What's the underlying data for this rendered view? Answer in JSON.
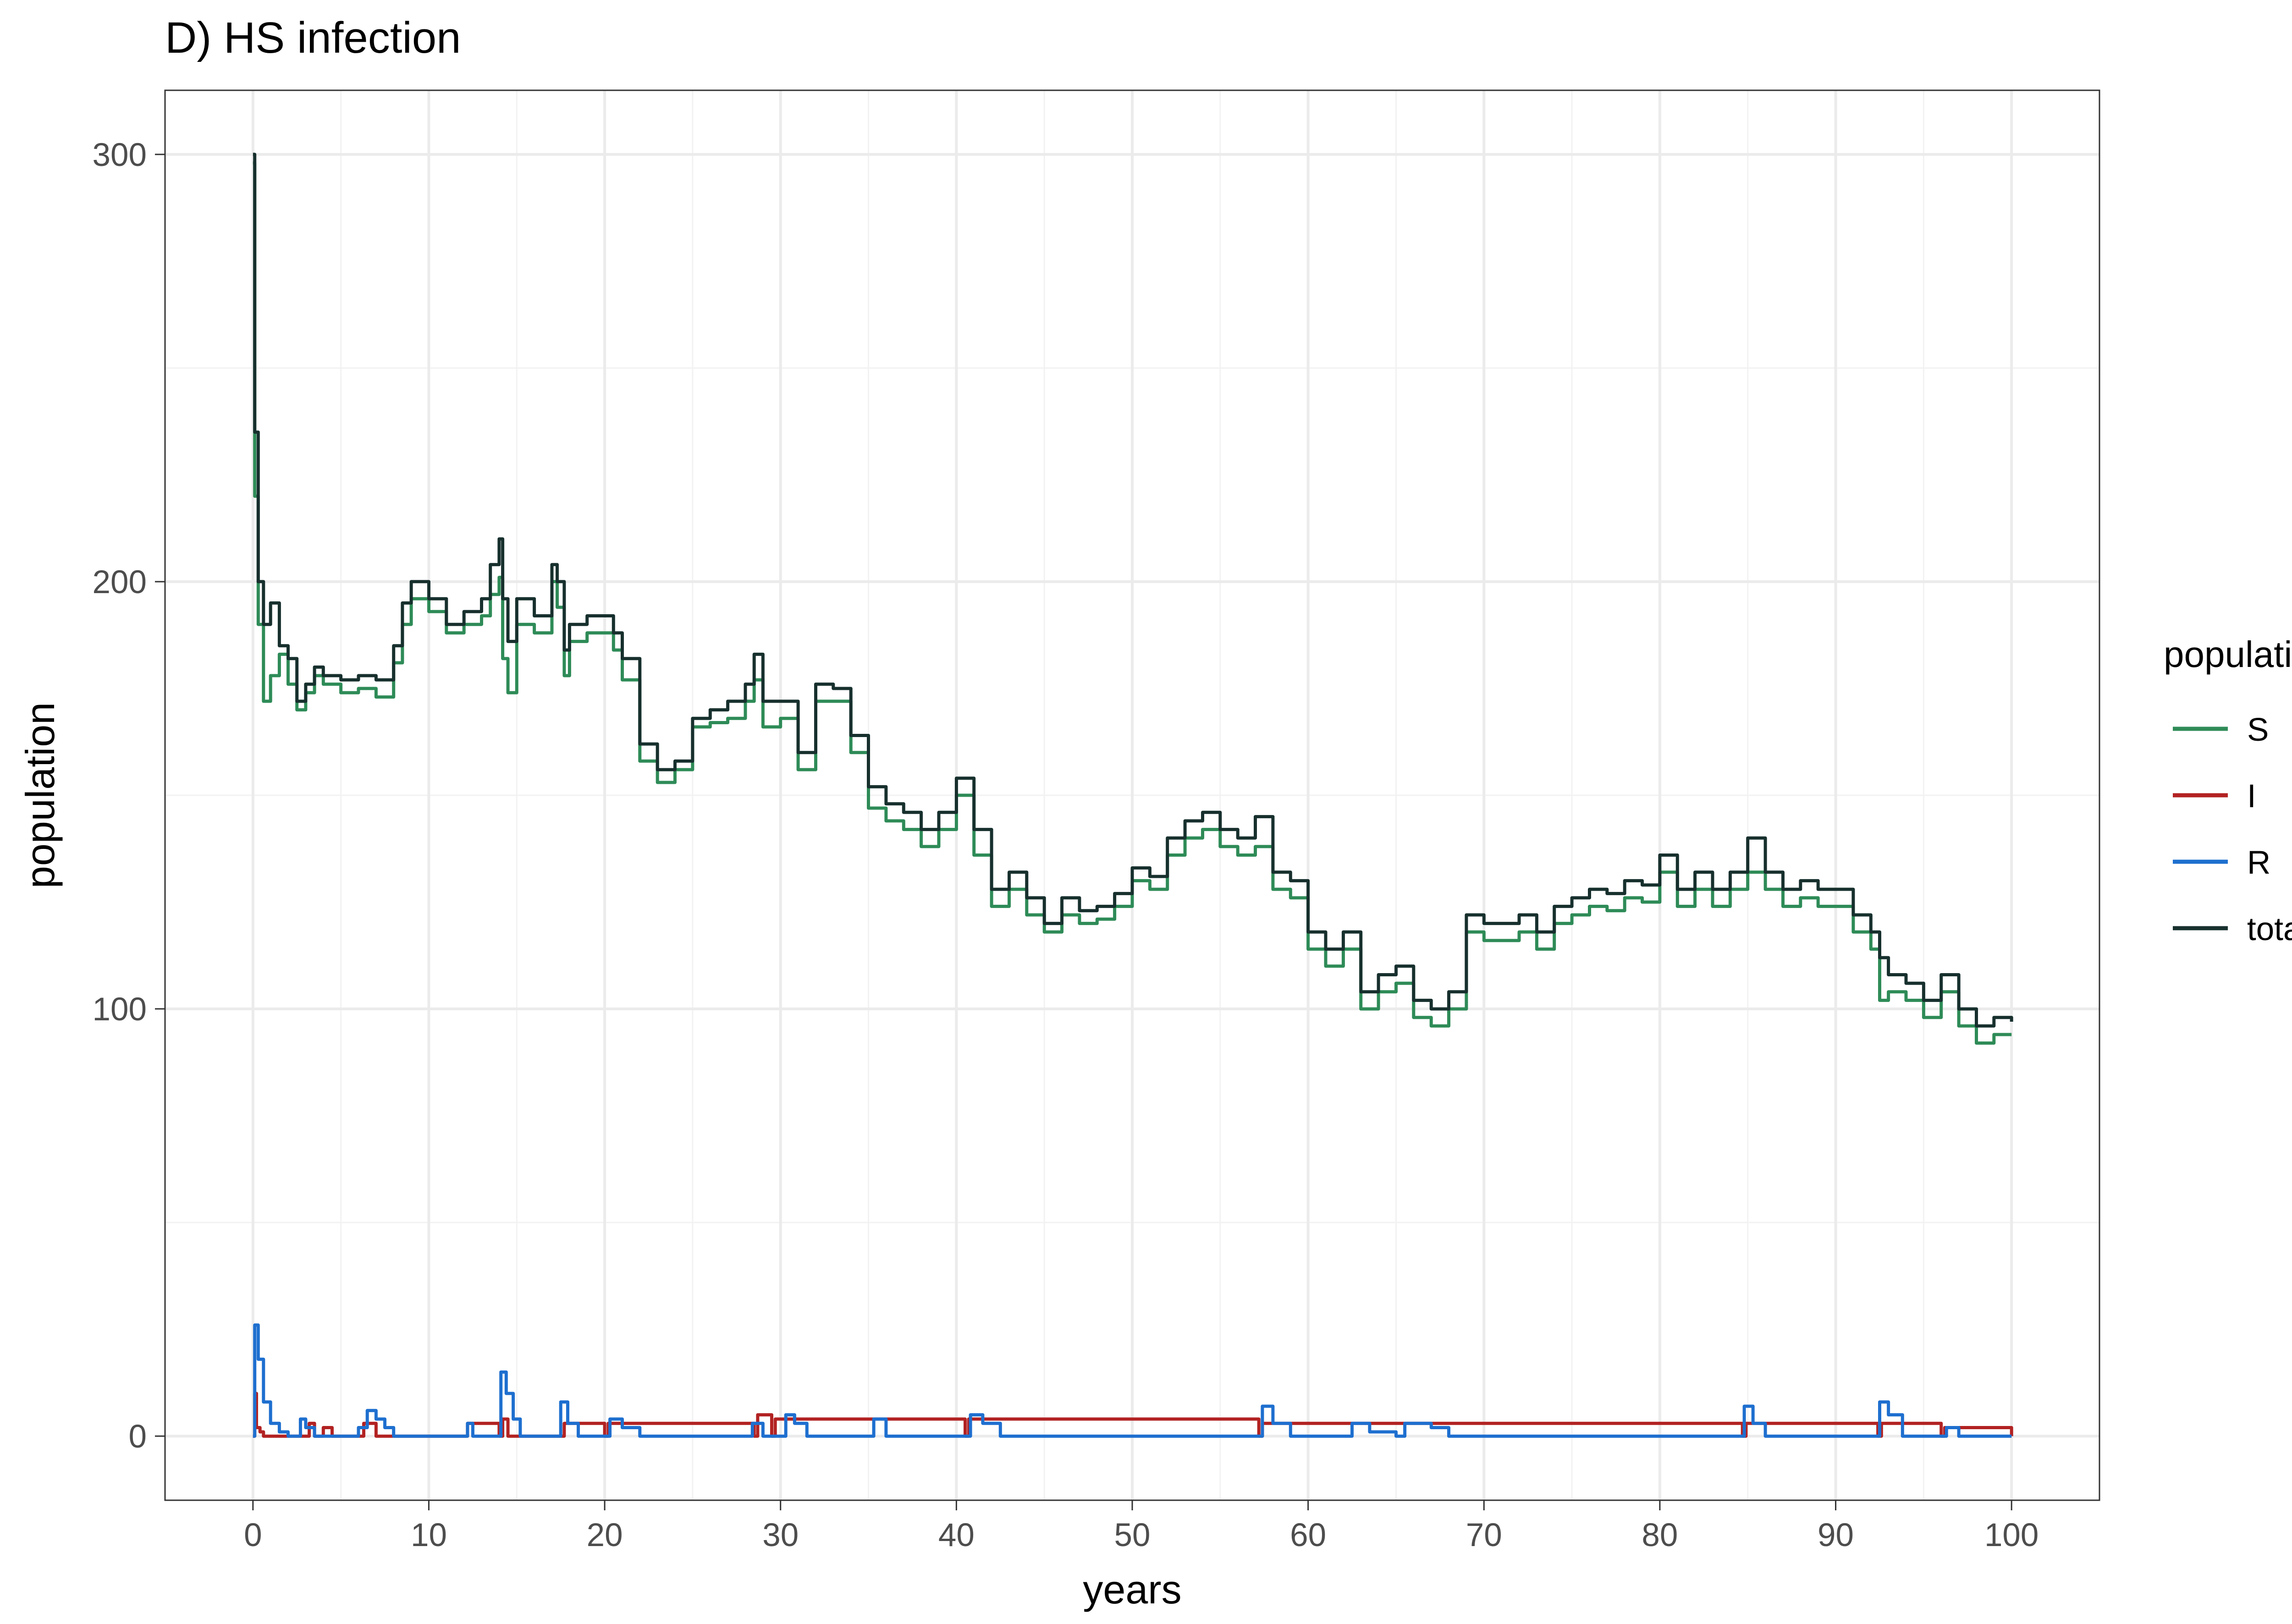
{
  "chart_data": {
    "type": "line",
    "title": "D) HS infection",
    "xlabel": "years",
    "ylabel": "population",
    "xlim": [
      -5,
      105
    ],
    "ylim": [
      -15,
      315
    ],
    "x_ticks": [
      0,
      10,
      20,
      30,
      40,
      50,
      60,
      70,
      80,
      90,
      100
    ],
    "x_tick_labels": [
      "0",
      "10",
      "20",
      "30",
      "40",
      "50",
      "60",
      "70",
      "80",
      "90",
      "100"
    ],
    "y_ticks": [
      0,
      100,
      200,
      300
    ],
    "y_tick_labels": [
      "0",
      "100",
      "200",
      "300"
    ],
    "grid": true,
    "legend": {
      "title": "population",
      "position": "right"
    },
    "series": [
      {
        "name": "S",
        "color": "#2e8b57",
        "x": [
          0,
          0.1,
          0.3,
          0.6,
          1,
          1.5,
          2,
          2.5,
          3,
          3.5,
          4,
          5,
          6,
          7,
          8,
          8.5,
          9,
          10,
          11,
          12,
          13,
          13.5,
          14,
          14.2,
          14.5,
          15,
          16,
          17,
          17.3,
          17.7,
          18,
          19,
          20,
          20.5,
          21,
          22,
          23,
          24,
          25,
          26,
          27,
          28,
          28.5,
          29,
          30,
          31,
          32,
          33,
          34,
          35,
          36,
          37,
          38,
          39,
          40,
          41,
          42,
          43,
          44,
          45,
          46,
          47,
          48,
          49,
          50,
          51,
          52,
          53,
          54,
          55,
          56,
          57,
          58,
          59,
          60,
          61,
          62,
          63,
          64,
          65,
          66,
          67,
          68,
          69,
          70,
          71,
          72,
          73,
          74,
          75,
          76,
          77,
          78,
          79,
          80,
          81,
          82,
          83,
          84,
          85,
          86,
          87,
          88,
          89,
          90,
          91,
          92,
          92.5,
          93,
          94,
          95,
          96,
          97,
          98,
          99,
          100
        ],
        "values": [
          298,
          220,
          190,
          172,
          178,
          183,
          176,
          170,
          174,
          178,
          176,
          174,
          175,
          173,
          181,
          190,
          196,
          193,
          188,
          190,
          192,
          197,
          201,
          182,
          174,
          190,
          188,
          200,
          194,
          178,
          186,
          188,
          188,
          184,
          177,
          158,
          153,
          156,
          166,
          167,
          168,
          172,
          177,
          166,
          168,
          156,
          172,
          172,
          160,
          147,
          144,
          142,
          138,
          142,
          150,
          136,
          124,
          128,
          122,
          118,
          122,
          120,
          121,
          124,
          130,
          128,
          136,
          140,
          142,
          138,
          136,
          138,
          128,
          126,
          114,
          110,
          114,
          100,
          104,
          106,
          98,
          96,
          100,
          118,
          116,
          116,
          118,
          114,
          120,
          122,
          124,
          123,
          126,
          125,
          132,
          124,
          128,
          124,
          128,
          132,
          128,
          124,
          126,
          124,
          124,
          118,
          114,
          102,
          104,
          102,
          98,
          104,
          96,
          92,
          94,
          94
        ]
      },
      {
        "name": "I",
        "color": "#b22222",
        "x": [
          0,
          0.1,
          0.2,
          0.4,
          0.6,
          1,
          2,
          3,
          3.2,
          3.5,
          4,
          4.5,
          6,
          6.3,
          7,
          12,
          12.2,
          14,
          14.2,
          14.5,
          17.5,
          17.7,
          20,
          20.2,
          28.5,
          28.7,
          29.5,
          29.7,
          40.5,
          40.7,
          57.2,
          57.4,
          84.7,
          84.9,
          92.4,
          92.6,
          96,
          96.2,
          100
        ],
        "values": [
          0,
          10,
          2,
          1,
          0,
          0,
          0,
          0,
          3,
          0,
          2,
          0,
          0,
          3,
          0,
          0,
          3,
          0,
          4,
          0,
          0,
          3,
          0,
          3,
          0,
          5,
          0,
          4,
          0,
          4,
          0,
          3,
          0,
          3,
          0,
          3,
          0,
          2,
          0
        ]
      },
      {
        "name": "R",
        "color": "#1e6fcf",
        "x": [
          0,
          0.1,
          0.3,
          0.6,
          1,
          1.5,
          2,
          2.5,
          2.7,
          3,
          3.5,
          4,
          5,
          6,
          6.5,
          7,
          7.5,
          8,
          12,
          12.2,
          12.5,
          14,
          14.1,
          14.4,
          14.8,
          15.2,
          17.3,
          17.5,
          17.9,
          18.5,
          20,
          20.3,
          21,
          22,
          28,
          28.4,
          29,
          30.3,
          30.8,
          31.5,
          35,
          35.3,
          36,
          40.5,
          40.8,
          41.5,
          42.5,
          57,
          57.4,
          58,
          59,
          62,
          62.5,
          63.5,
          65,
          65.5,
          67,
          68,
          84.6,
          84.8,
          85.3,
          86,
          92.3,
          92.5,
          93,
          93.8,
          96,
          96.3,
          97,
          100
        ],
        "values": [
          0,
          26,
          18,
          8,
          3,
          1,
          0,
          0,
          4,
          2,
          0,
          0,
          0,
          2,
          6,
          4,
          2,
          0,
          0,
          3,
          0,
          0,
          15,
          10,
          4,
          0,
          0,
          8,
          3,
          0,
          0,
          4,
          2,
          0,
          0,
          3,
          0,
          5,
          3,
          0,
          0,
          4,
          0,
          0,
          5,
          3,
          0,
          0,
          7,
          3,
          0,
          0,
          3,
          1,
          0,
          3,
          2,
          0,
          0,
          7,
          3,
          0,
          0,
          8,
          5,
          0,
          0,
          2,
          0,
          0
        ]
      },
      {
        "name": "total",
        "color": "#17302e",
        "x": [
          0,
          0.1,
          0.3,
          0.6,
          1,
          1.5,
          2,
          2.5,
          3,
          3.5,
          4,
          5,
          6,
          7,
          8,
          8.5,
          9,
          10,
          11,
          12,
          13,
          13.5,
          14,
          14.2,
          14.5,
          15,
          16,
          17,
          17.3,
          17.7,
          18,
          19,
          20,
          20.5,
          21,
          22,
          23,
          24,
          25,
          26,
          27,
          28,
          28.5,
          29,
          30,
          31,
          32,
          33,
          34,
          35,
          36,
          37,
          38,
          39,
          40,
          41,
          42,
          43,
          44,
          45,
          46,
          47,
          48,
          49,
          50,
          51,
          52,
          53,
          54,
          55,
          56,
          57,
          58,
          59,
          60,
          61,
          62,
          63,
          64,
          65,
          66,
          67,
          68,
          69,
          70,
          71,
          72,
          73,
          74,
          75,
          76,
          77,
          78,
          79,
          80,
          81,
          82,
          83,
          84,
          85,
          86,
          87,
          88,
          89,
          90,
          91,
          92,
          92.5,
          93,
          94,
          95,
          96,
          97,
          98,
          99,
          100
        ],
        "values": [
          300,
          235,
          200,
          190,
          195,
          185,
          182,
          172,
          176,
          180,
          178,
          177,
          178,
          177,
          185,
          195,
          200,
          196,
          190,
          193,
          196,
          204,
          210,
          196,
          186,
          196,
          192,
          204,
          200,
          184,
          190,
          192,
          192,
          188,
          182,
          162,
          156,
          158,
          168,
          170,
          172,
          176,
          183,
          172,
          172,
          160,
          176,
          175,
          164,
          152,
          148,
          146,
          142,
          146,
          154,
          142,
          128,
          132,
          126,
          120,
          126,
          123,
          124,
          127,
          133,
          131,
          140,
          144,
          146,
          142,
          140,
          145,
          132,
          130,
          118,
          114,
          118,
          104,
          108,
          110,
          102,
          100,
          104,
          122,
          120,
          120,
          122,
          118,
          124,
          126,
          128,
          127,
          130,
          129,
          136,
          128,
          132,
          128,
          132,
          140,
          132,
          128,
          130,
          128,
          128,
          122,
          118,
          112,
          108,
          106,
          102,
          108,
          100,
          96,
          98,
          97
        ]
      }
    ]
  }
}
